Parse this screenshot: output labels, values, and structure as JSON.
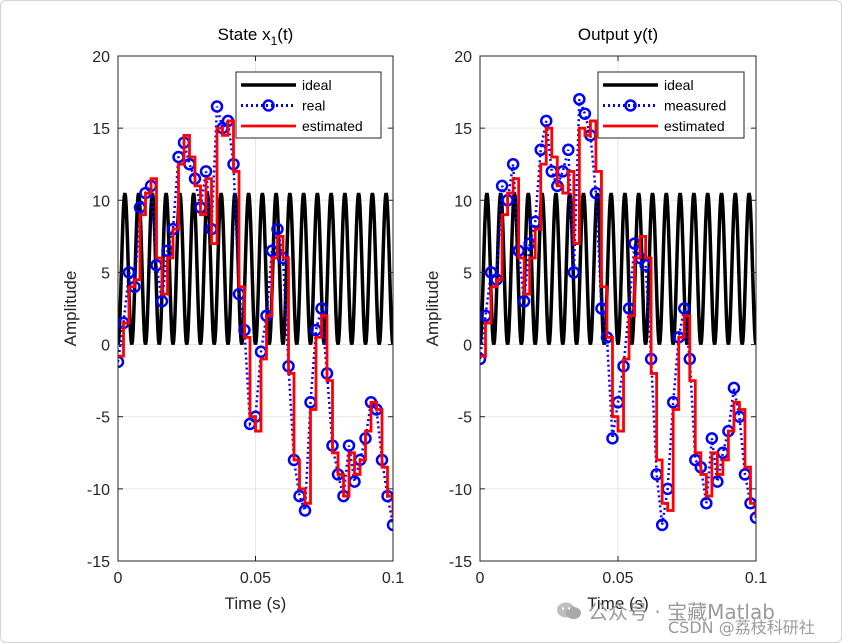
{
  "chart_data": [
    {
      "type": "line",
      "title": "State x1(t)",
      "title_main": "State x",
      "title_sub": "1",
      "title_tail": "(t)",
      "xlabel": "Time (s)",
      "ylabel": "Amplitude",
      "xlim": [
        0,
        0.1
      ],
      "ylim": [
        -15,
        20
      ],
      "xticks": [
        0,
        0.05,
        0.1
      ],
      "xtick_labels": [
        "0",
        "0.05",
        "0.1"
      ],
      "yticks": [
        -15,
        -10,
        -5,
        0,
        5,
        10,
        15,
        20
      ],
      "ytick_labels": [
        "-15",
        "-10",
        "-5",
        "0",
        "5",
        "10",
        "15",
        "20"
      ],
      "grid": true,
      "legend_position": "top-right",
      "series": [
        {
          "name": "ideal",
          "color": "#000000",
          "style": "solid",
          "x": [
            0,
            0.005,
            0.01,
            0.015,
            0.02,
            0.025,
            0.03,
            0.035,
            0.04,
            0.045,
            0.05,
            0.055,
            0.06,
            0.065,
            0.07,
            0.075,
            0.08,
            0.085,
            0.09,
            0.095,
            0.1
          ],
          "y": [
            0,
            8.2,
            10.5,
            2.3,
            0.0,
            8.2,
            10.5,
            2.3,
            0.0,
            8.2,
            10.5,
            2.3,
            0.0,
            8.2,
            10.5,
            2.3,
            0.0,
            8.2,
            10.5,
            2.3,
            0.0
          ]
        },
        {
          "name": "real",
          "color": "#0000ff",
          "style": "dotted-circle",
          "x": [
            0,
            0.002,
            0.004,
            0.006,
            0.008,
            0.01,
            0.012,
            0.014,
            0.016,
            0.018,
            0.02,
            0.022,
            0.024,
            0.026,
            0.028,
            0.03,
            0.032,
            0.034,
            0.036,
            0.038,
            0.04,
            0.042,
            0.044,
            0.046,
            0.048,
            0.05,
            0.052,
            0.054,
            0.056,
            0.058,
            0.06,
            0.062,
            0.064,
            0.066,
            0.068,
            0.07,
            0.072,
            0.074,
            0.076,
            0.078,
            0.08,
            0.082,
            0.084,
            0.086,
            0.088,
            0.09,
            0.092,
            0.094,
            0.096,
            0.098,
            0.1
          ],
          "y": [
            -1.2,
            1.5,
            5.0,
            4.0,
            9.5,
            10.5,
            11.0,
            5.5,
            3.0,
            6.5,
            8.0,
            13.0,
            14.0,
            12.5,
            11.5,
            9.5,
            12.0,
            8.0,
            16.5,
            15.0,
            15.5,
            12.5,
            3.5,
            1.0,
            -5.5,
            -5.0,
            -0.5,
            2.0,
            6.5,
            8.0,
            6.0,
            -1.5,
            -8.0,
            -10.5,
            -11.5,
            -4.0,
            1.0,
            2.5,
            -2.0,
            -7.0,
            -9.0,
            -10.5,
            -7.0,
            -9.5,
            -8.0,
            -6.5,
            -4.0,
            -4.5,
            -8.0,
            -10.5,
            -12.5
          ]
        },
        {
          "name": "estimated",
          "color": "#ff0000",
          "style": "solid",
          "x": [
            0,
            0.002,
            0.004,
            0.006,
            0.008,
            0.01,
            0.012,
            0.014,
            0.016,
            0.018,
            0.02,
            0.022,
            0.024,
            0.026,
            0.028,
            0.03,
            0.032,
            0.034,
            0.036,
            0.038,
            0.04,
            0.042,
            0.044,
            0.046,
            0.048,
            0.05,
            0.052,
            0.054,
            0.056,
            0.058,
            0.06,
            0.062,
            0.064,
            0.066,
            0.068,
            0.07,
            0.072,
            0.074,
            0.076,
            0.078,
            0.08,
            0.082,
            0.084,
            0.086,
            0.088,
            0.09,
            0.092,
            0.094,
            0.096,
            0.098,
            0.1
          ],
          "y": [
            -0.8,
            1.5,
            4.0,
            4.5,
            9.0,
            10.5,
            11.5,
            6.0,
            3.5,
            6.0,
            8.0,
            12.5,
            14.5,
            13.0,
            11.0,
            9.0,
            11.5,
            7.0,
            15.0,
            14.5,
            15.5,
            12.0,
            4.0,
            0.5,
            -5.0,
            -6.0,
            -1.0,
            2.0,
            6.0,
            7.5,
            6.0,
            -2.0,
            -8.0,
            -10.0,
            -11.0,
            -4.5,
            0.5,
            2.0,
            -2.5,
            -7.5,
            -9.0,
            -10.5,
            -7.5,
            -9.0,
            -8.0,
            -6.0,
            -4.0,
            -4.5,
            -8.5,
            -10.5,
            -12.0
          ]
        }
      ]
    },
    {
      "type": "line",
      "title": "Output y(t)",
      "xlabel": "Time (s)",
      "ylabel": "Amplitude",
      "xlim": [
        0,
        0.1
      ],
      "ylim": [
        -15,
        20
      ],
      "xticks": [
        0,
        0.05,
        0.1
      ],
      "xtick_labels": [
        "0",
        "0.05",
        "0.1"
      ],
      "yticks": [
        -15,
        -10,
        -5,
        0,
        5,
        10,
        15,
        20
      ],
      "ytick_labels": [
        "-15",
        "-10",
        "-5",
        "0",
        "5",
        "10",
        "15",
        "20"
      ],
      "grid": true,
      "legend_position": "top-right",
      "series": [
        {
          "name": "ideal",
          "color": "#000000",
          "style": "solid",
          "x": [
            0,
            0.005,
            0.01,
            0.015,
            0.02,
            0.025,
            0.03,
            0.035,
            0.04,
            0.045,
            0.05,
            0.055,
            0.06,
            0.065,
            0.07,
            0.075,
            0.08,
            0.085,
            0.09,
            0.095,
            0.1
          ],
          "y": [
            0,
            8.2,
            10.5,
            2.3,
            0.0,
            8.2,
            10.5,
            2.3,
            0.0,
            8.2,
            10.5,
            2.3,
            0.0,
            8.2,
            10.5,
            2.3,
            0.0,
            8.2,
            10.5,
            2.3,
            0.0
          ]
        },
        {
          "name": "measured",
          "color": "#0000ff",
          "style": "dotted-circle",
          "x": [
            0,
            0.002,
            0.004,
            0.006,
            0.008,
            0.01,
            0.012,
            0.014,
            0.016,
            0.018,
            0.02,
            0.022,
            0.024,
            0.026,
            0.028,
            0.03,
            0.032,
            0.034,
            0.036,
            0.038,
            0.04,
            0.042,
            0.044,
            0.046,
            0.048,
            0.05,
            0.052,
            0.054,
            0.056,
            0.058,
            0.06,
            0.062,
            0.064,
            0.066,
            0.068,
            0.07,
            0.072,
            0.074,
            0.076,
            0.078,
            0.08,
            0.082,
            0.084,
            0.086,
            0.088,
            0.09,
            0.092,
            0.094,
            0.096,
            0.098,
            0.1
          ],
          "y": [
            -1.0,
            2.0,
            5.0,
            4.5,
            11.0,
            10.0,
            12.5,
            6.5,
            3.0,
            7.0,
            8.5,
            13.5,
            15.5,
            12.0,
            11.0,
            12.0,
            13.5,
            5.0,
            17.0,
            16.0,
            14.5,
            10.5,
            2.5,
            0.5,
            -6.5,
            -4.0,
            -1.5,
            2.5,
            7.0,
            6.0,
            5.5,
            -1.0,
            -9.0,
            -12.5,
            -10.0,
            -4.0,
            0.5,
            2.5,
            -1.0,
            -8.0,
            -8.5,
            -11.0,
            -6.5,
            -9.5,
            -7.5,
            -6.0,
            -3.0,
            -5.0,
            -9.0,
            -11.0,
            -12.0
          ]
        },
        {
          "name": "estimated",
          "color": "#ff0000",
          "style": "solid",
          "x": [
            0,
            0.002,
            0.004,
            0.006,
            0.008,
            0.01,
            0.012,
            0.014,
            0.016,
            0.018,
            0.02,
            0.022,
            0.024,
            0.026,
            0.028,
            0.03,
            0.032,
            0.034,
            0.036,
            0.038,
            0.04,
            0.042,
            0.044,
            0.046,
            0.048,
            0.05,
            0.052,
            0.054,
            0.056,
            0.058,
            0.06,
            0.062,
            0.064,
            0.066,
            0.068,
            0.07,
            0.072,
            0.074,
            0.076,
            0.078,
            0.08,
            0.082,
            0.084,
            0.086,
            0.088,
            0.09,
            0.092,
            0.094,
            0.096,
            0.098,
            0.1
          ],
          "y": [
            -0.8,
            1.5,
            4.0,
            4.5,
            9.0,
            10.5,
            11.5,
            6.0,
            3.5,
            6.0,
            8.0,
            12.5,
            15.0,
            13.0,
            11.0,
            10.5,
            12.0,
            7.0,
            15.0,
            14.5,
            15.5,
            12.0,
            4.0,
            0.5,
            -5.0,
            -6.0,
            -1.0,
            2.0,
            6.0,
            7.5,
            6.0,
            -2.0,
            -8.0,
            -11.0,
            -11.5,
            -4.5,
            0.5,
            2.0,
            -2.5,
            -7.5,
            -9.0,
            -10.5,
            -7.5,
            -9.0,
            -8.0,
            -6.0,
            -4.0,
            -4.5,
            -8.5,
            -11.0,
            -12.0
          ]
        }
      ]
    }
  ],
  "watermark": {
    "wechat_text": "公众号 · 宝藏Matlab",
    "csdn_text": "CSDN @荔枝科研社"
  }
}
